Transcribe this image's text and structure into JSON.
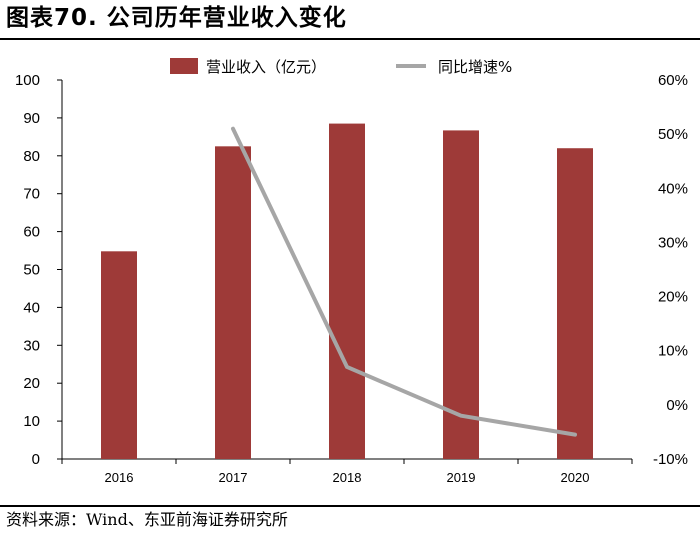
{
  "title": "图表70. 公司历年营业收入变化",
  "source": "资料来源：Wind、东亚前海证券研究所",
  "chart_data": {
    "type": "bar",
    "categories": [
      "2016",
      "2017",
      "2018",
      "2019",
      "2020"
    ],
    "series": [
      {
        "name": "营业收入（亿元）",
        "type": "bar",
        "axis": "left",
        "color": "#9E3A38",
        "values": [
          54.8,
          82.5,
          88.5,
          86.7,
          82.0
        ]
      },
      {
        "name": "同比增速%",
        "type": "line",
        "axis": "right",
        "color": "#A6A6A6",
        "values": [
          null,
          51,
          7,
          -2,
          -5.5
        ]
      }
    ],
    "ylim": [
      0,
      100
    ],
    "y2lim": [
      -10,
      60
    ],
    "yticks": [
      "0",
      "10",
      "20",
      "30",
      "40",
      "50",
      "60",
      "70",
      "80",
      "90",
      "100"
    ],
    "y2ticks": [
      "-10%",
      "0%",
      "10%",
      "20%",
      "30%",
      "40%",
      "50%",
      "60%"
    ],
    "legend_position": "top",
    "grid": false
  }
}
